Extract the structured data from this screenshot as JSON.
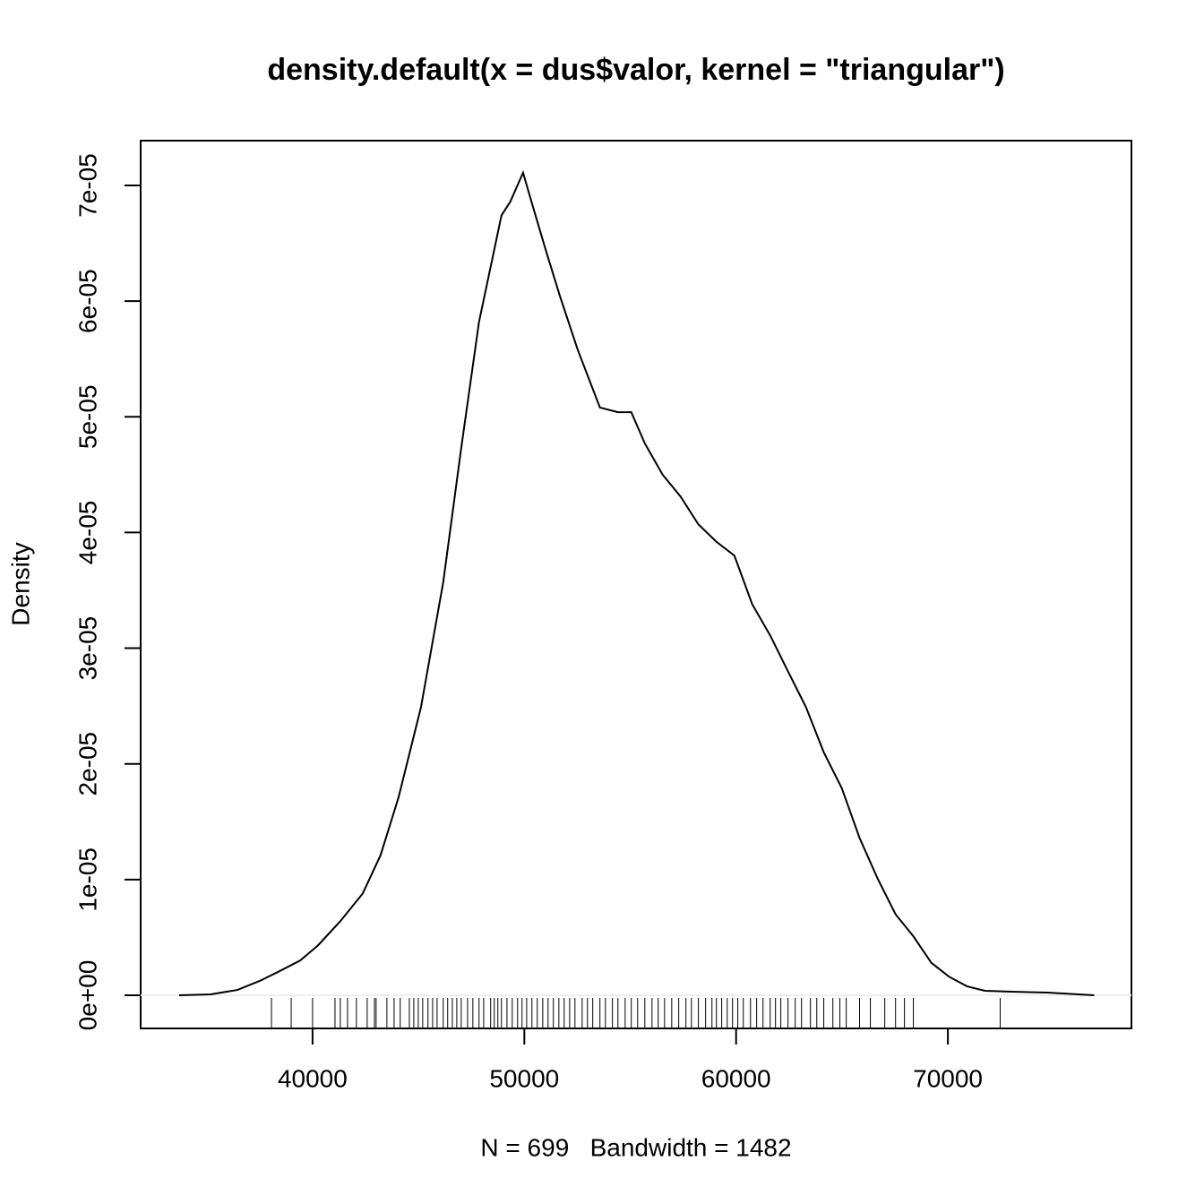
{
  "chart_data": {
    "type": "line",
    "title": "density.default(x = dus$valor, kernel = \"triangular\")",
    "x_label": "N = 699   Bandwidth = 1482",
    "y_label": "Density",
    "color": "#000000",
    "xlim": [
      31882,
      78668
    ],
    "ylim": [
      -2.865e-06,
      7.387e-05
    ],
    "xticks": [
      40000,
      50000,
      60000,
      70000
    ],
    "yticks": [
      {
        "value": 0,
        "label": "0e+00"
      },
      {
        "value": 1e-05,
        "label": "1e-05"
      },
      {
        "value": 2e-05,
        "label": "2e-05"
      },
      {
        "value": 3e-05,
        "label": "3e-05"
      },
      {
        "value": 4e-05,
        "label": "4e-05"
      },
      {
        "value": 5e-05,
        "label": "5e-05"
      },
      {
        "value": 6e-05,
        "label": "6e-05"
      },
      {
        "value": 7e-05,
        "label": "7e-05"
      }
    ],
    "x": [
      33700,
      35180,
      36450,
      37505,
      38350,
      39410,
      40250,
      41310,
      42370,
      43210,
      44060,
      45120,
      46170,
      47020,
      47860,
      48920,
      49340,
      49940,
      50400,
      51030,
      51670,
      52520,
      53570,
      54420,
      55050,
      55690,
      56530,
      57380,
      58220,
      59070,
      59920,
      60760,
      61610,
      62450,
      63300,
      64140,
      64990,
      65830,
      66680,
      67530,
      68370,
      69220,
      70060,
      70910,
      71750,
      73020,
      74710,
      76910
    ],
    "values": [
      0,
      8e-08,
      4.6e-07,
      1.24e-06,
      2e-06,
      3e-06,
      4.3e-06,
      6.4e-06,
      8.8e-06,
      1.21e-05,
      1.71e-05,
      2.49e-05,
      3.57e-05,
      4.73e-05,
      5.82e-05,
      6.74e-05,
      6.86e-05,
      7.11e-05,
      6.82e-05,
      6.43e-05,
      6.05e-05,
      5.58e-05,
      5.08e-05,
      5.04e-05,
      5.04e-05,
      4.77e-05,
      4.5e-05,
      4.31e-05,
      4.07e-05,
      3.92e-05,
      3.8e-05,
      3.38e-05,
      3.11e-05,
      2.8e-05,
      2.49e-05,
      2.1e-05,
      1.79e-05,
      1.36e-05,
      1.01e-05,
      7e-06,
      5.1e-06,
      2.8e-06,
      1.6e-06,
      7.7e-07,
      3.9e-07,
      3.1e-07,
      2.3e-07,
      0
    ],
    "rug": [
      38060,
      38990,
      40000,
      41060,
      41310,
      41650,
      42070,
      42580,
      42920,
      43000,
      43510,
      43850,
      44140,
      44570,
      44780,
      44990,
      45200,
      45450,
      45670,
      45880,
      46170,
      46380,
      46600,
      46810,
      47020,
      47320,
      47570,
      47860,
      48080,
      48410,
      48580,
      48750,
      48920,
      49180,
      49430,
      49680,
      49890,
      50110,
      50360,
      50610,
      50870,
      51120,
      51370,
      51630,
      51880,
      52140,
      52390,
      52730,
      52980,
      53230,
      53570,
      53830,
      54160,
      54420,
      54760,
      55050,
      55350,
      55690,
      56030,
      56320,
      56620,
      56960,
      57290,
      57630,
      57890,
      58220,
      58560,
      58860,
      59070,
      59320,
      59580,
      59830,
      60080,
      60340,
      60680,
      60970,
      61270,
      61610,
      61860,
      62110,
      62450,
      62790,
      63090,
      63510,
      63810,
      64140,
      64570,
      64900,
      65200,
      65830,
      66340,
      67020,
      67530,
      67950,
      68370,
      72470
    ]
  }
}
